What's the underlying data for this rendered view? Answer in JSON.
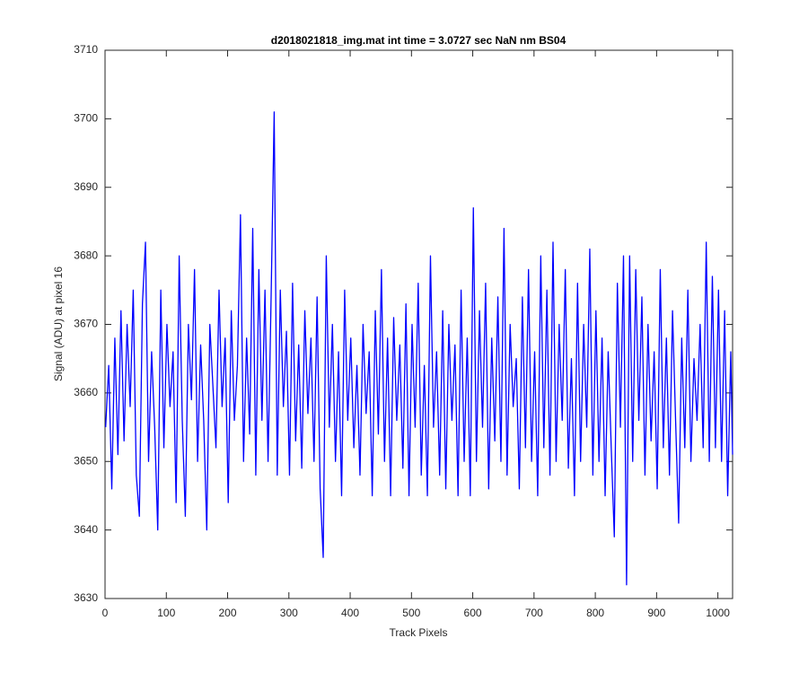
{
  "chart_data": {
    "type": "line",
    "title": "d2018021818_img.mat int time = 3.0727 sec  NaN nm BS04",
    "x_label": "Track Pixels",
    "y_label": "Signal (ADU) at pixel 16",
    "xlim": [
      0,
      1024
    ],
    "ylim": [
      3630,
      3710
    ],
    "xticks": [
      0,
      100,
      200,
      300,
      400,
      500,
      600,
      700,
      800,
      900,
      1000
    ],
    "yticks": [
      3630,
      3640,
      3650,
      3660,
      3670,
      3680,
      3690,
      3700,
      3710
    ],
    "grid": false,
    "x": [
      1,
      6,
      11,
      16,
      21,
      26,
      31,
      36,
      41,
      46,
      51,
      56,
      61,
      66,
      71,
      76,
      81,
      86,
      91,
      96,
      101,
      106,
      111,
      116,
      121,
      126,
      131,
      136,
      141,
      146,
      151,
      156,
      161,
      166,
      171,
      176,
      181,
      186,
      191,
      196,
      201,
      206,
      211,
      216,
      221,
      226,
      231,
      236,
      241,
      246,
      251,
      256,
      261,
      266,
      271,
      276,
      281,
      286,
      291,
      296,
      301,
      306,
      311,
      316,
      321,
      326,
      331,
      336,
      341,
      346,
      351,
      356,
      361,
      366,
      371,
      376,
      381,
      386,
      391,
      396,
      401,
      406,
      411,
      416,
      421,
      426,
      431,
      436,
      441,
      446,
      451,
      456,
      461,
      466,
      471,
      476,
      481,
      486,
      491,
      496,
      501,
      506,
      511,
      516,
      521,
      526,
      531,
      536,
      541,
      546,
      551,
      556,
      561,
      566,
      571,
      576,
      581,
      586,
      591,
      596,
      601,
      606,
      611,
      616,
      621,
      626,
      631,
      636,
      641,
      646,
      651,
      656,
      661,
      666,
      671,
      676,
      681,
      686,
      691,
      696,
      701,
      706,
      711,
      716,
      721,
      726,
      731,
      736,
      741,
      746,
      751,
      756,
      761,
      766,
      771,
      776,
      781,
      786,
      791,
      796,
      801,
      806,
      811,
      816,
      821,
      826,
      831,
      836,
      841,
      846,
      851,
      856,
      861,
      866,
      871,
      876,
      881,
      886,
      891,
      896,
      901,
      906,
      911,
      916,
      921,
      926,
      931,
      936,
      941,
      946,
      951,
      956,
      961,
      966,
      971,
      976,
      981,
      986,
      991,
      996,
      1001,
      1006,
      1011,
      1016,
      1021,
      1024
    ],
    "series": [
      {
        "color": "#0000ff",
        "values": [
          3655,
          3664,
          3646,
          3668,
          3651,
          3672,
          3653,
          3670,
          3658,
          3675,
          3648,
          3642,
          3673,
          3682,
          3650,
          3666,
          3655,
          3640,
          3675,
          3652,
          3670,
          3658,
          3666,
          3644,
          3680,
          3656,
          3642,
          3670,
          3659,
          3678,
          3650,
          3667,
          3656,
          3640,
          3670,
          3661,
          3652,
          3675,
          3658,
          3668,
          3644,
          3672,
          3656,
          3664,
          3686,
          3650,
          3668,
          3654,
          3684,
          3648,
          3678,
          3656,
          3675,
          3650,
          3674,
          3701,
          3648,
          3675,
          3658,
          3669,
          3648,
          3676,
          3653,
          3667,
          3649,
          3672,
          3657,
          3668,
          3650,
          3674,
          3646,
          3636,
          3680,
          3655,
          3670,
          3650,
          3666,
          3645,
          3675,
          3656,
          3668,
          3652,
          3664,
          3648,
          3670,
          3657,
          3666,
          3645,
          3672,
          3654,
          3678,
          3650,
          3668,
          3645,
          3671,
          3656,
          3667,
          3649,
          3673,
          3645,
          3670,
          3655,
          3676,
          3648,
          3664,
          3645,
          3680,
          3655,
          3666,
          3648,
          3672,
          3646,
          3670,
          3656,
          3667,
          3645,
          3675,
          3650,
          3668,
          3645,
          3687,
          3650,
          3672,
          3655,
          3676,
          3646,
          3668,
          3653,
          3674,
          3650,
          3684,
          3648,
          3670,
          3658,
          3665,
          3646,
          3674,
          3652,
          3678,
          3650,
          3666,
          3645,
          3680,
          3652,
          3675,
          3648,
          3682,
          3650,
          3670,
          3656,
          3678,
          3649,
          3665,
          3645,
          3676,
          3650,
          3670,
          3655,
          3681,
          3648,
          3672,
          3650,
          3668,
          3645,
          3666,
          3652,
          3639,
          3676,
          3655,
          3680,
          3632,
          3680,
          3650,
          3678,
          3656,
          3674,
          3648,
          3670,
          3653,
          3666,
          3646,
          3678,
          3652,
          3668,
          3648,
          3672,
          3656,
          3641,
          3668,
          3652,
          3675,
          3650,
          3665,
          3656,
          3670,
          3652,
          3682,
          3650,
          3677,
          3652,
          3675,
          3650,
          3672,
          3645,
          3666,
          3651
        ]
      }
    ]
  }
}
